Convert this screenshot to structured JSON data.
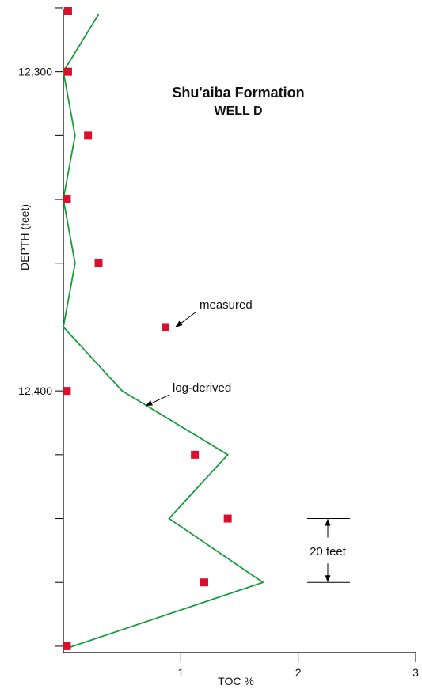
{
  "chart_data": {
    "type": "scatter",
    "title": "Shu'aiba Formation",
    "subtitle": "WELL D",
    "xlabel": "TOC %",
    "ylabel": "DEPTH (feet)",
    "xlim": [
      0,
      3
    ],
    "ylim": [
      12281,
      12482
    ],
    "y_inverted": true,
    "x_ticks": [
      1,
      2,
      3
    ],
    "x_tick_labels": [
      "1",
      "2",
      "3"
    ],
    "y_ticks": [
      12280,
      12300,
      12320,
      12340,
      12360,
      12380,
      12400,
      12420,
      12440,
      12460,
      12480
    ],
    "y_tick_labels": [
      {
        "value": 12300,
        "label": "12,300"
      },
      {
        "value": 12400,
        "label": "12,400"
      }
    ],
    "series": [
      {
        "name": "measured",
        "style": "markers",
        "color": "#d8102e",
        "points": [
          {
            "x": 0.04,
            "y": 12281
          },
          {
            "x": 0.04,
            "y": 12300
          },
          {
            "x": 0.21,
            "y": 12320
          },
          {
            "x": 0.03,
            "y": 12340
          },
          {
            "x": 0.3,
            "y": 12360
          },
          {
            "x": 0.87,
            "y": 12380
          },
          {
            "x": 0.03,
            "y": 12400
          },
          {
            "x": 1.12,
            "y": 12420
          },
          {
            "x": 1.4,
            "y": 12440
          },
          {
            "x": 1.2,
            "y": 12460
          },
          {
            "x": 0.03,
            "y": 12480
          }
        ]
      },
      {
        "name": "log-derived",
        "style": "line",
        "color": "#1a9b3c",
        "points": [
          {
            "x": 0.3,
            "y": 12282
          },
          {
            "x": 0.0,
            "y": 12300
          },
          {
            "x": 0.1,
            "y": 12320
          },
          {
            "x": 0.0,
            "y": 12340
          },
          {
            "x": 0.1,
            "y": 12360
          },
          {
            "x": 0.0,
            "y": 12380
          },
          {
            "x": 0.5,
            "y": 12400
          },
          {
            "x": 1.4,
            "y": 12420
          },
          {
            "x": 0.9,
            "y": 12440
          },
          {
            "x": 1.7,
            "y": 12460
          },
          {
            "x": 0.0,
            "y": 12481
          }
        ]
      }
    ],
    "annotations": [
      {
        "text": "measured",
        "target_series": "measured"
      },
      {
        "text": "log-derived",
        "target_series": "log-derived"
      },
      {
        "text": "20 feet",
        "type": "scale-bar",
        "from": 12440,
        "to": 12460
      }
    ]
  }
}
